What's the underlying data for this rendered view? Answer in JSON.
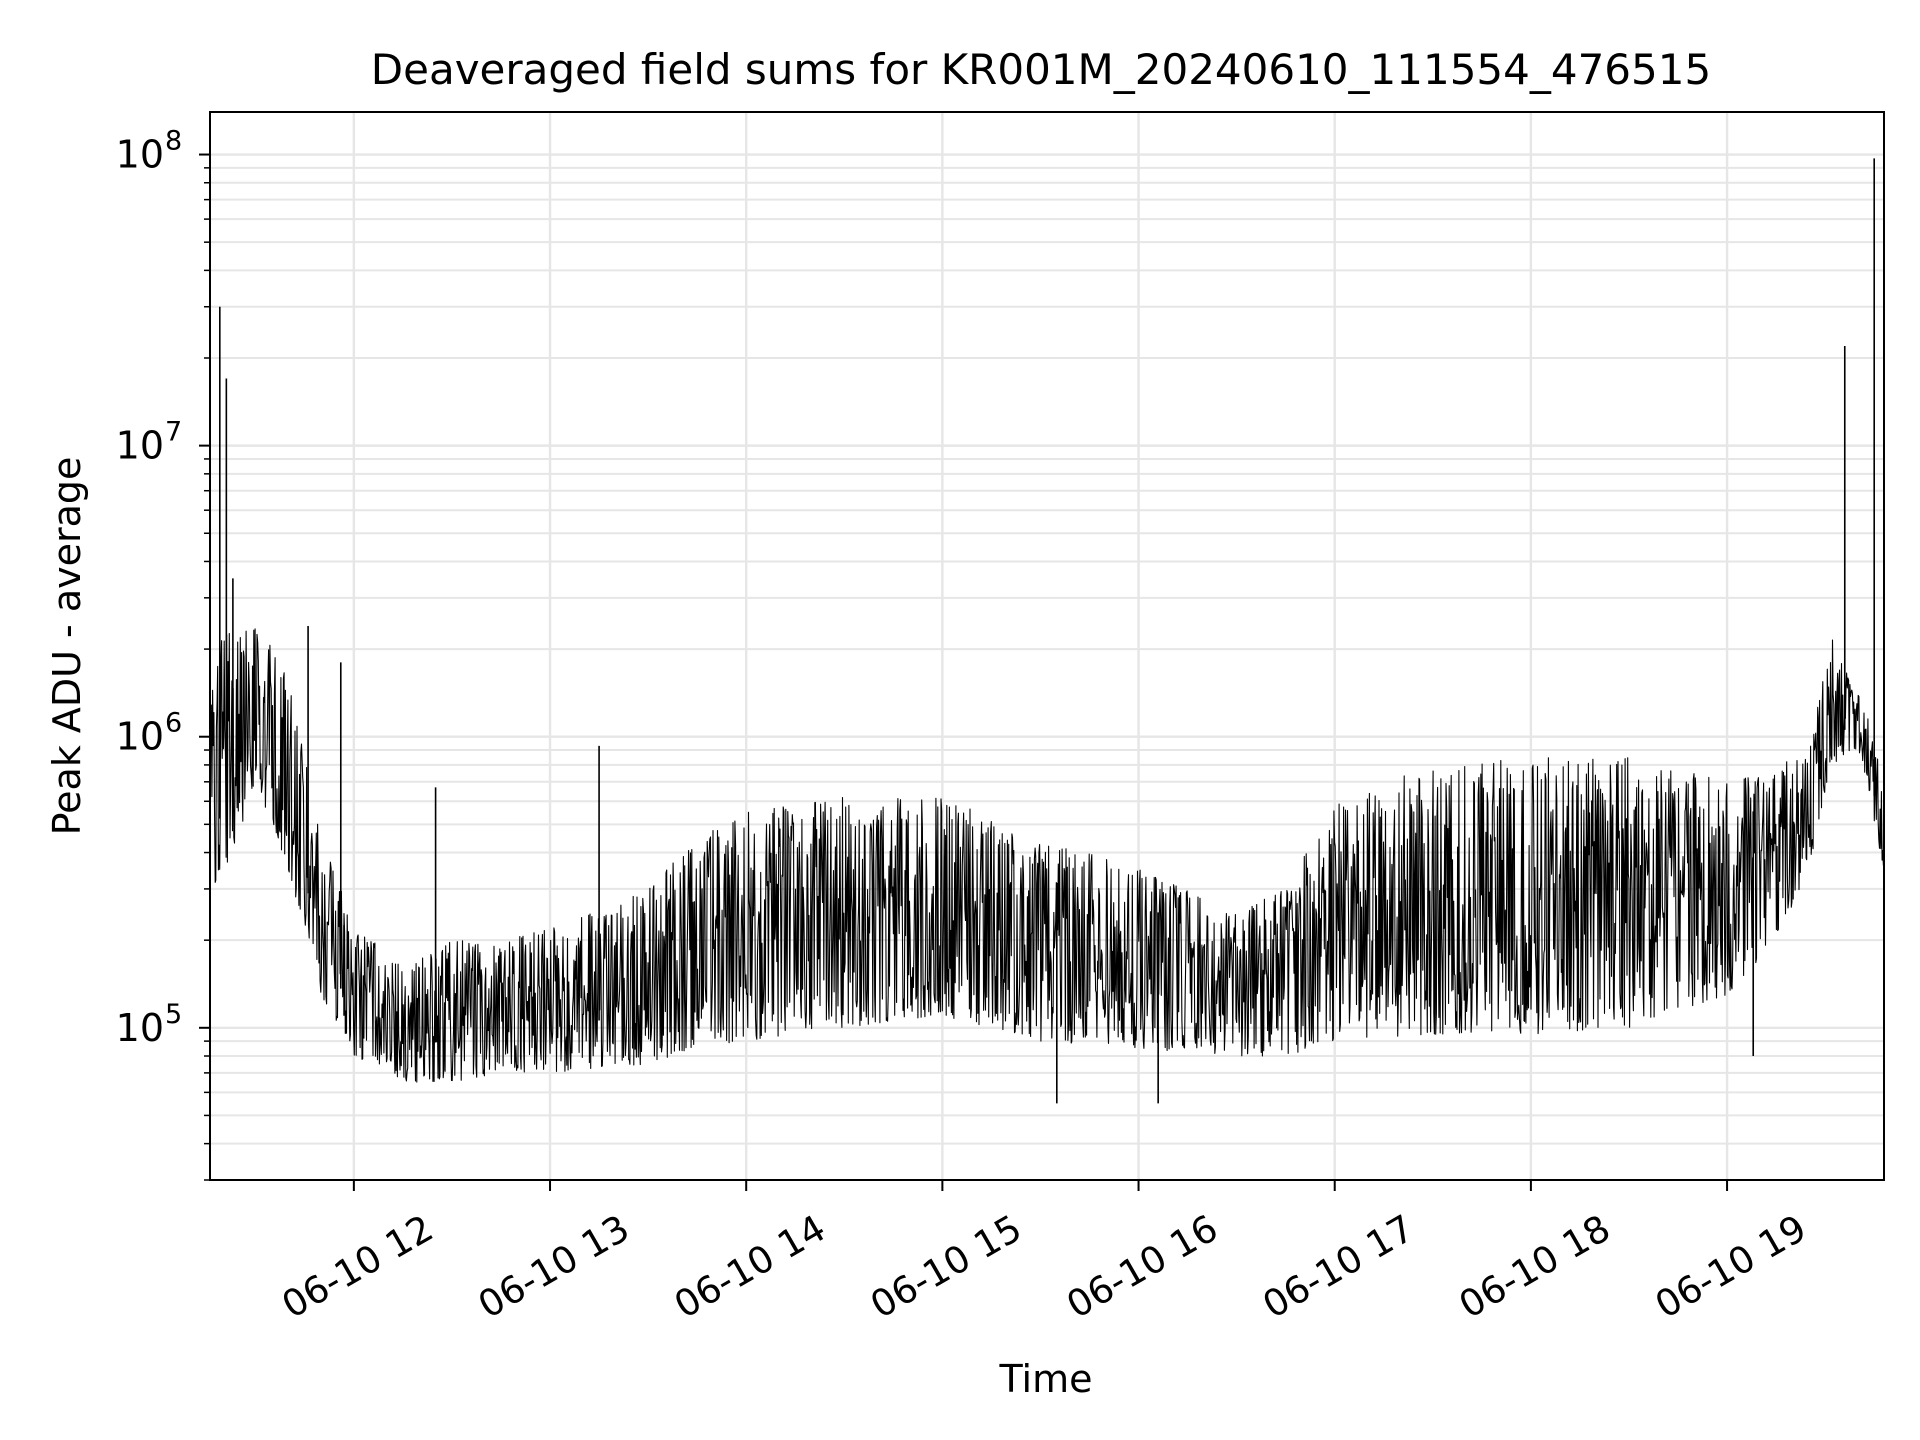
{
  "chart_data": {
    "type": "line",
    "title": "Deaveraged field sums for KR001M_20240610_111554_476515",
    "xlabel": "Time",
    "ylabel": "Peak ADU - average",
    "y_scale": "log",
    "ylim": [
      30000,
      140000000
    ],
    "xlim": [
      "2024-06-10 11:16",
      "2024-06-10 19:48"
    ],
    "grid": true,
    "x_ticks": [
      {
        "t": "2024-06-10 12:00",
        "label": "06-10 12"
      },
      {
        "t": "2024-06-10 13:00",
        "label": "06-10 13"
      },
      {
        "t": "2024-06-10 14:00",
        "label": "06-10 14"
      },
      {
        "t": "2024-06-10 15:00",
        "label": "06-10 15"
      },
      {
        "t": "2024-06-10 16:00",
        "label": "06-10 16"
      },
      {
        "t": "2024-06-10 17:00",
        "label": "06-10 17"
      },
      {
        "t": "2024-06-10 18:00",
        "label": "06-10 18"
      },
      {
        "t": "2024-06-10 19:00",
        "label": "06-10 19"
      }
    ],
    "y_ticks": [
      {
        "value": 100000,
        "base": "10",
        "exp": "5"
      },
      {
        "value": 1000000,
        "base": "10",
        "exp": "6"
      },
      {
        "value": 10000000,
        "base": "10",
        "exp": "7"
      },
      {
        "value": 100000000,
        "base": "10",
        "exp": "8"
      }
    ],
    "series": [
      {
        "line_color": "#000000",
        "envelope": [
          {
            "t": "2024-06-10 11:16",
            "low": 280000,
            "high": 1300000
          },
          {
            "t": "2024-06-10 11:20",
            "low": 300000,
            "high": 2300000
          },
          {
            "t": "2024-06-10 11:30",
            "low": 700000,
            "high": 2500000
          },
          {
            "t": "2024-06-10 11:40",
            "low": 350000,
            "high": 1600000
          },
          {
            "t": "2024-06-10 11:50",
            "low": 130000,
            "high": 450000
          },
          {
            "t": "2024-06-10 12:00",
            "low": 80000,
            "high": 230000
          },
          {
            "t": "2024-06-10 12:15",
            "low": 65000,
            "high": 160000
          },
          {
            "t": "2024-06-10 12:30",
            "low": 65000,
            "high": 200000
          },
          {
            "t": "2024-06-10 12:45",
            "low": 70000,
            "high": 200000
          },
          {
            "t": "2024-06-10 13:00",
            "low": 70000,
            "high": 220000
          },
          {
            "t": "2024-06-10 13:30",
            "low": 75000,
            "high": 300000
          },
          {
            "t": "2024-06-10 13:45",
            "low": 85000,
            "high": 450000
          },
          {
            "t": "2024-06-10 14:00",
            "low": 90000,
            "high": 550000
          },
          {
            "t": "2024-06-10 14:30",
            "low": 100000,
            "high": 620000
          },
          {
            "t": "2024-06-10 15:00",
            "low": 110000,
            "high": 620000
          },
          {
            "t": "2024-06-10 15:30",
            "low": 90000,
            "high": 450000
          },
          {
            "t": "2024-06-10 16:00",
            "low": 85000,
            "high": 350000
          },
          {
            "t": "2024-06-10 16:30",
            "low": 80000,
            "high": 250000
          },
          {
            "t": "2024-06-10 16:45",
            "low": 80000,
            "high": 300000
          },
          {
            "t": "2024-06-10 17:00",
            "low": 90000,
            "high": 600000
          },
          {
            "t": "2024-06-10 17:30",
            "low": 95000,
            "high": 800000
          },
          {
            "t": "2024-06-10 18:00",
            "low": 95000,
            "high": 850000
          },
          {
            "t": "2024-06-10 18:30",
            "low": 100000,
            "high": 850000
          },
          {
            "t": "2024-06-10 19:00",
            "low": 130000,
            "high": 700000
          },
          {
            "t": "2024-06-10 19:15",
            "low": 200000,
            "high": 800000
          },
          {
            "t": "2024-06-10 19:25",
            "low": 350000,
            "high": 900000
          },
          {
            "t": "2024-06-10 19:32",
            "low": 800000,
            "high": 2200000
          },
          {
            "t": "2024-06-10 19:40",
            "low": 900000,
            "high": 1400000
          },
          {
            "t": "2024-06-10 19:48",
            "low": 350000,
            "high": 900000
          }
        ],
        "spikes": [
          {
            "t": "2024-06-10 11:19",
            "value": 30000000
          },
          {
            "t": "2024-06-10 11:21",
            "value": 17000000
          },
          {
            "t": "2024-06-10 11:23",
            "value": 3500000
          },
          {
            "t": "2024-06-10 11:46",
            "value": 2400000
          },
          {
            "t": "2024-06-10 11:56",
            "value": 1800000
          },
          {
            "t": "2024-06-10 11:57",
            "value": 110000
          },
          {
            "t": "2024-06-10 12:25",
            "value": 670000
          },
          {
            "t": "2024-06-10 13:15",
            "value": 930000
          },
          {
            "t": "2024-06-10 15:35",
            "value": 55000
          },
          {
            "t": "2024-06-10 16:06",
            "value": 55000
          },
          {
            "t": "2024-06-10 19:08",
            "value": 80000
          },
          {
            "t": "2024-06-10 19:36",
            "value": 22000000
          },
          {
            "t": "2024-06-10 19:45",
            "value": 97000000
          }
        ]
      }
    ]
  }
}
